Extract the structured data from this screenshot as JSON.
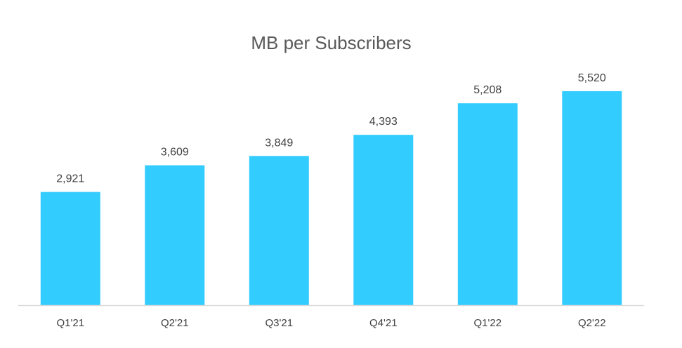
{
  "chart_data": {
    "type": "bar",
    "title": "MB per Subscribers",
    "categories": [
      "Q1'21",
      "Q2'21",
      "Q3'21",
      "Q4'21",
      "Q1'22",
      "Q2'22"
    ],
    "values": [
      2921,
      3609,
      3849,
      4393,
      5208,
      5520
    ],
    "value_labels": [
      "2,921",
      "3,609",
      "3,849",
      "4,393",
      "5,208",
      "5,520"
    ],
    "xlabel": "",
    "ylabel": "",
    "ylim": [
      0,
      5700
    ],
    "grid": false,
    "legend": "none",
    "bar_color": "#33CCFF",
    "axis_color": "#D9D9D9"
  }
}
